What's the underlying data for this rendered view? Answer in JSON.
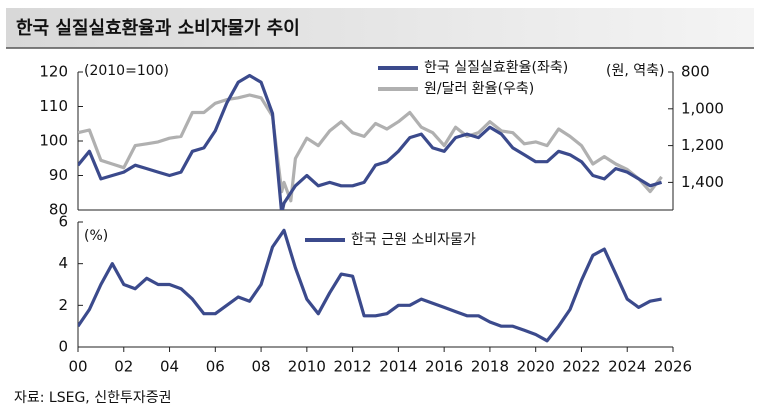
{
  "chart_data": [
    {
      "type": "line",
      "title": "한국 실질실효환율과 소비자물가 추이",
      "annotations": [
        "(2010=100)",
        "(원, 역축)"
      ],
      "x": [
        2000,
        2000.5,
        2001,
        2001.5,
        2002,
        2002.5,
        2003,
        2003.5,
        2004,
        2004.5,
        2005,
        2005.5,
        2006,
        2006.5,
        2007,
        2007.5,
        2008,
        2008.5,
        2008.9,
        2009,
        2009.3,
        2009.5,
        2010,
        2010.5,
        2011,
        2011.5,
        2012,
        2012.5,
        2013,
        2013.5,
        2014,
        2014.5,
        2015,
        2015.5,
        2016,
        2016.5,
        2017,
        2017.5,
        2018,
        2018.5,
        2019,
        2019.5,
        2020,
        2020.5,
        2021,
        2021.5,
        2022,
        2022.5,
        2023,
        2023.5,
        2024,
        2024.5,
        2025,
        2025.5
      ],
      "xlim": [
        2000,
        2026
      ],
      "ylim": [
        80,
        120
      ],
      "yticks": [
        80,
        90,
        100,
        110,
        120
      ],
      "y2lim": [
        1550,
        800
      ],
      "y2ticks": [
        800,
        {
          "value": 1000,
          "label": "1,000"
        },
        {
          "value": 1200,
          "label": "1,200"
        },
        {
          "value": 1400,
          "label": "1,400"
        }
      ],
      "series": [
        {
          "name": "한국 실질실효환율(좌축)",
          "color": "#3b4a8c",
          "values": [
            93,
            97,
            89,
            90,
            91,
            93,
            92,
            91,
            90,
            91,
            97,
            98,
            103,
            111,
            117,
            119,
            117,
            108,
            79,
            82,
            85,
            87,
            90,
            87,
            88,
            87,
            87,
            88,
            93,
            94,
            97,
            101,
            102,
            98,
            97,
            101,
            102,
            101,
            104,
            102,
            98,
            96,
            94,
            94,
            97,
            96,
            94,
            90,
            89,
            92,
            91,
            89,
            87,
            88
          ]
        },
        {
          "name": "원/달러 환율(우축)",
          "color": "#b0b0b0",
          "axis": "y2",
          "values": [
            1130,
            1115,
            1280,
            1300,
            1320,
            1200,
            1190,
            1180,
            1160,
            1150,
            1020,
            1020,
            970,
            950,
            940,
            925,
            940,
            1040,
            1450,
            1400,
            1500,
            1270,
            1160,
            1200,
            1120,
            1070,
            1130,
            1150,
            1080,
            1110,
            1070,
            1020,
            1100,
            1130,
            1200,
            1100,
            1150,
            1130,
            1070,
            1120,
            1130,
            1190,
            1180,
            1200,
            1110,
            1150,
            1200,
            1300,
            1260,
            1300,
            1330,
            1380,
            1450,
            1370
          ]
        }
      ]
    },
    {
      "type": "line",
      "annotations": [
        "(%)"
      ],
      "x": [
        2000,
        2000.5,
        2001,
        2001.5,
        2002,
        2002.5,
        2003,
        2003.5,
        2004,
        2004.5,
        2005,
        2005.5,
        2006,
        2006.5,
        2007,
        2007.5,
        2008,
        2008.5,
        2009,
        2009.5,
        2010,
        2010.5,
        2011,
        2011.5,
        2012,
        2012.5,
        2013,
        2013.5,
        2014,
        2014.5,
        2015,
        2015.5,
        2016,
        2016.5,
        2017,
        2017.5,
        2018,
        2018.5,
        2019,
        2019.5,
        2020,
        2020.5,
        2021,
        2021.5,
        2022,
        2022.5,
        2023,
        2023.5,
        2024,
        2024.5,
        2025,
        2025.5
      ],
      "xlim": [
        2000,
        2026
      ],
      "xticks": [
        {
          "value": 2000,
          "label": "00"
        },
        {
          "value": 2002,
          "label": "02"
        },
        {
          "value": 2004,
          "label": "04"
        },
        {
          "value": 2006,
          "label": "06"
        },
        {
          "value": 2008,
          "label": "08"
        },
        2010,
        2012,
        2014,
        2016,
        2018,
        2020,
        2022,
        2024,
        2026
      ],
      "ylim": [
        0,
        6
      ],
      "yticks": [
        0,
        2,
        4,
        6
      ],
      "series": [
        {
          "name": "한국 근원 소비자물가",
          "color": "#3b4a8c",
          "values": [
            1.0,
            1.8,
            3.0,
            4.0,
            3.0,
            2.8,
            3.3,
            3.0,
            3.0,
            2.8,
            2.3,
            1.6,
            1.6,
            2.0,
            2.4,
            2.2,
            3.0,
            4.8,
            5.6,
            3.8,
            2.3,
            1.6,
            2.6,
            3.5,
            3.4,
            1.5,
            1.5,
            1.6,
            2.0,
            2.0,
            2.3,
            2.1,
            1.9,
            1.7,
            1.5,
            1.5,
            1.2,
            1.0,
            1.0,
            0.8,
            0.6,
            0.3,
            1.0,
            1.8,
            3.2,
            4.4,
            4.7,
            3.5,
            2.3,
            1.9,
            2.2,
            2.3
          ]
        }
      ]
    }
  ],
  "source": "자료: LSEG, 신한투자증권"
}
